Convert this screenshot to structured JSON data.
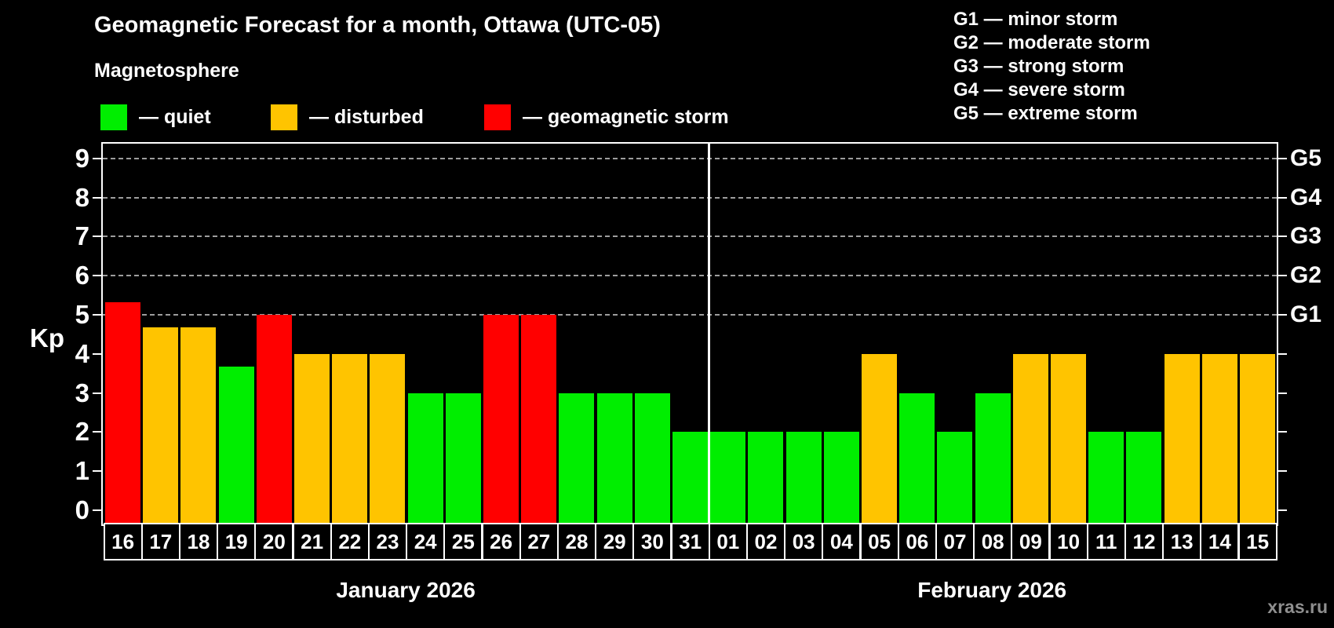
{
  "header": {
    "title": "Geomagnetic Forecast for a month, Ottawa (UTC-05)",
    "subtitle": "Magnetosphere"
  },
  "legend": {
    "items": [
      {
        "id": "quiet",
        "label": "— quiet"
      },
      {
        "id": "disturbed",
        "label": "— disturbed"
      },
      {
        "id": "storm",
        "label": "— geomagnetic storm"
      }
    ]
  },
  "g_legend": [
    "G1 — minor storm",
    "G2 — moderate storm",
    "G3 — strong storm",
    "G4 — severe storm",
    "G5 — extreme storm"
  ],
  "colors": {
    "quiet": "#00ee00",
    "disturbed": "#ffc400",
    "storm": "#ff0000",
    "grid": "#9d9d9d",
    "axis": "#ffffff",
    "watermark": "#8f8f8f"
  },
  "watermark": "xras.ru",
  "chart_data": {
    "type": "bar",
    "title": "Geomagnetic Forecast for a month, Ottawa (UTC-05)",
    "ylabel": "Kp",
    "ylim": [
      0,
      9
    ],
    "yticks": [
      0,
      1,
      2,
      3,
      4,
      5,
      6,
      7,
      8,
      9
    ],
    "gridlines_at": [
      5,
      6,
      7,
      8,
      9
    ],
    "right_axis_labels": {
      "5": "G1",
      "6": "G2",
      "7": "G3",
      "8": "G4",
      "9": "G5"
    },
    "legend_position": "top",
    "grid": "dashed horizontal at storm levels only",
    "months": [
      {
        "label": "January 2026",
        "days": 16
      },
      {
        "label": "February 2026",
        "days": 15
      }
    ],
    "bars": [
      {
        "day": "16",
        "value": 5.33,
        "status": "storm"
      },
      {
        "day": "17",
        "value": 4.67,
        "status": "disturbed"
      },
      {
        "day": "18",
        "value": 4.67,
        "status": "disturbed"
      },
      {
        "day": "19",
        "value": 3.67,
        "status": "quiet"
      },
      {
        "day": "20",
        "value": 5.0,
        "status": "storm"
      },
      {
        "day": "21",
        "value": 4.0,
        "status": "disturbed"
      },
      {
        "day": "22",
        "value": 4.0,
        "status": "disturbed"
      },
      {
        "day": "23",
        "value": 4.0,
        "status": "disturbed"
      },
      {
        "day": "24",
        "value": 3.0,
        "status": "quiet"
      },
      {
        "day": "25",
        "value": 3.0,
        "status": "quiet"
      },
      {
        "day": "26",
        "value": 5.0,
        "status": "storm"
      },
      {
        "day": "27",
        "value": 5.0,
        "status": "storm"
      },
      {
        "day": "28",
        "value": 3.0,
        "status": "quiet"
      },
      {
        "day": "29",
        "value": 3.0,
        "status": "quiet"
      },
      {
        "day": "30",
        "value": 3.0,
        "status": "quiet"
      },
      {
        "day": "31",
        "value": 2.0,
        "status": "quiet"
      },
      {
        "day": "01",
        "value": 2.0,
        "status": "quiet"
      },
      {
        "day": "02",
        "value": 2.0,
        "status": "quiet"
      },
      {
        "day": "03",
        "value": 2.0,
        "status": "quiet"
      },
      {
        "day": "04",
        "value": 2.0,
        "status": "quiet"
      },
      {
        "day": "05",
        "value": 4.0,
        "status": "disturbed"
      },
      {
        "day": "06",
        "value": 3.0,
        "status": "quiet"
      },
      {
        "day": "07",
        "value": 2.0,
        "status": "quiet"
      },
      {
        "day": "08",
        "value": 3.0,
        "status": "quiet"
      },
      {
        "day": "09",
        "value": 4.0,
        "status": "disturbed"
      },
      {
        "day": "10",
        "value": 4.0,
        "status": "disturbed"
      },
      {
        "day": "11",
        "value": 2.0,
        "status": "quiet"
      },
      {
        "day": "12",
        "value": 2.0,
        "status": "quiet"
      },
      {
        "day": "13",
        "value": 4.0,
        "status": "disturbed"
      },
      {
        "day": "14",
        "value": 4.0,
        "status": "disturbed"
      },
      {
        "day": "15",
        "value": 4.0,
        "status": "disturbed"
      }
    ]
  }
}
